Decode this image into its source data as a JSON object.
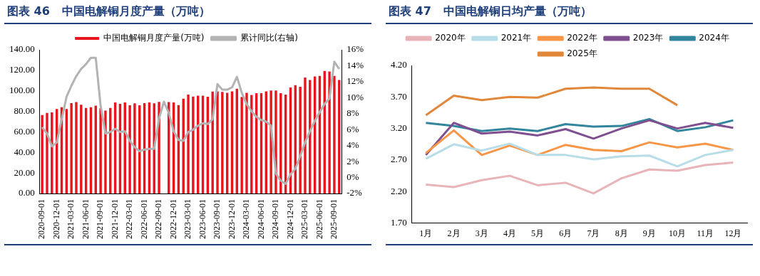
{
  "chart_data": [
    {
      "type": "bar",
      "title": "图表 46   中国电解铜月度产量（万吨）",
      "legend": "top",
      "marker": "none",
      "line_style": "solid",
      "categories": [
        "2020-09-01",
        null,
        null,
        "2020-12-01",
        null,
        null,
        "2021-03-01",
        null,
        null,
        "2021-06-01",
        null,
        null,
        "2021-09-01",
        null,
        null,
        "2021-12-01",
        null,
        null,
        "2022-03-01",
        null,
        null,
        "2022-06-01",
        null,
        null,
        "2022-09-01",
        null,
        null,
        "2022-12-01",
        null,
        null,
        "2023-03-01",
        null,
        null,
        "2023-06-01",
        null,
        null,
        "2023-09-01",
        null,
        null,
        "2023-12-01",
        null,
        null,
        "2024-03-01",
        null,
        null,
        "2024-06-01",
        null,
        null,
        "2024-09-01",
        null,
        null,
        "2024-12-01",
        null,
        null,
        "2025-03-01",
        null,
        null,
        "2025-06-01",
        null,
        null,
        "2025-09-01",
        null
      ],
      "series": [
        {
          "name": "中国电解铜月度产量(万吨)",
          "type": "bar",
          "color": "#e8141e",
          "values": [
            76.5,
            78.5,
            79,
            82.3,
            84,
            82.3,
            88,
            89,
            86.5,
            83.4,
            84,
            85.6,
            83,
            80.7,
            83.4,
            88.7,
            87.3,
            88.7,
            86,
            87.8,
            86,
            88,
            88.7,
            87.8,
            89.2,
            null,
            89,
            88.7,
            86.2,
            92.3,
            96.4,
            94.5,
            95.3,
            95.3,
            94.2,
            99.2,
            99.4,
            99,
            98,
            99.4,
            102,
            94,
            98,
            96,
            97.8,
            97.8,
            99.4,
            100.3,
            100.3,
            97.8,
            96.4,
            103.3,
            105.5,
            103.9,
            113,
            110.5,
            114,
            114.6,
            119.3,
            118.8,
            114.6,
            110.5
          ]
        },
        {
          "name": "累计同比(右轴)",
          "type": "line",
          "axis": "y2",
          "color": "#b3b3b3",
          "values": [
            6.3,
            5.5,
            3.9,
            4.4,
            7.3,
            10.1,
            11.5,
            12.7,
            13.6,
            14.2,
            15.0,
            15.0,
            9.0,
            5.5,
            5.7,
            6.1,
            5.7,
            5.8,
            4.6,
            3.8,
            3.3,
            3.5,
            3.6,
            3.6,
            7.4,
            9.5,
            8.1,
            5.8,
            4.7,
            4.6,
            5.7,
            6.0,
            6.5,
            6.8,
            6.7,
            7.3,
            11.7,
            11.0,
            11.0,
            11.3,
            12.6,
            10.6,
            9.2,
            8.3,
            7.6,
            7.2,
            7.0,
            6.5,
            0.5,
            -0.4,
            -0.8,
            0.4,
            1.1,
            2.7,
            4.4,
            5.8,
            7.1,
            8.2,
            9.2,
            9.9,
            14.5,
            13.6
          ]
        }
      ],
      "ylim": [
        0,
        140
      ],
      "yticks": [
        {
          "value": 0,
          "label": "0.00"
        },
        {
          "value": 20,
          "label": "20.00"
        },
        {
          "value": 40,
          "label": "40.00"
        },
        {
          "value": 60,
          "label": "60.00"
        },
        {
          "value": 80,
          "label": "80.00"
        },
        {
          "value": 100,
          "label": "100.00"
        },
        {
          "value": 120,
          "label": "120.00"
        },
        {
          "value": 140,
          "label": "140.00"
        }
      ],
      "y2lim": [
        -2,
        16
      ],
      "y2ticks": [
        {
          "value": -2,
          "label": "-2%"
        },
        {
          "value": 0,
          "label": "0%"
        },
        {
          "value": 2,
          "label": "2%"
        },
        {
          "value": 4,
          "label": "4%"
        },
        {
          "value": 6,
          "label": "6%"
        },
        {
          "value": 8,
          "label": "8%"
        },
        {
          "value": 10,
          "label": "10%"
        },
        {
          "value": 12,
          "label": "12%"
        },
        {
          "value": 14,
          "label": "14%"
        },
        {
          "value": 16,
          "label": "16%"
        }
      ]
    },
    {
      "type": "line",
      "title": "图表 47   中国电解铜日均产量（万吨）",
      "legend": "top",
      "marker": "none",
      "line_style": "solid",
      "categories": [
        "1月",
        "2月",
        "3月",
        "4月",
        "5月",
        "6月",
        "7月",
        "8月",
        "9月",
        "10月",
        "11月",
        "12月"
      ],
      "series": [
        {
          "name": "2020年",
          "color": "#e8b4b8",
          "values": [
            2.31,
            2.27,
            2.38,
            2.45,
            2.3,
            2.34,
            2.17,
            2.41,
            2.55,
            2.53,
            2.62,
            2.66
          ]
        },
        {
          "name": "2021年",
          "color": "#b7dde8",
          "values": [
            2.72,
            2.95,
            2.85,
            2.96,
            2.78,
            2.78,
            2.71,
            2.76,
            2.77,
            2.6,
            2.78,
            2.86
          ]
        },
        {
          "name": "2022年",
          "color": "#f79646",
          "values": [
            2.81,
            3.17,
            2.78,
            2.93,
            2.78,
            2.94,
            2.86,
            2.84,
            2.98,
            2.9,
            2.96,
            2.86
          ]
        },
        {
          "name": "2023年",
          "color": "#7f4f8f",
          "values": [
            2.78,
            3.29,
            3.12,
            3.15,
            3.09,
            3.19,
            3.04,
            3.2,
            3.33,
            3.2,
            3.29,
            3.21
          ]
        },
        {
          "name": "2024年",
          "color": "#31859c",
          "values": [
            3.29,
            3.24,
            3.16,
            3.2,
            3.16,
            3.27,
            3.23,
            3.24,
            3.35,
            3.16,
            3.22,
            3.33
          ]
        },
        {
          "name": "2025年",
          "color": "#e0873a",
          "values": [
            3.41,
            3.72,
            3.65,
            3.7,
            3.69,
            3.83,
            3.85,
            3.83,
            3.83,
            3.57,
            null,
            null
          ]
        }
      ],
      "ylim": [
        1.7,
        4.2
      ],
      "yticks": [
        {
          "value": 1.7,
          "label": "1.70"
        },
        {
          "value": 2.2,
          "label": "2.20"
        },
        {
          "value": 2.7,
          "label": "2.70"
        },
        {
          "value": 3.2,
          "label": "3.20"
        },
        {
          "value": 3.7,
          "label": "3.70"
        },
        {
          "value": 4.2,
          "label": "4.20"
        }
      ]
    }
  ]
}
